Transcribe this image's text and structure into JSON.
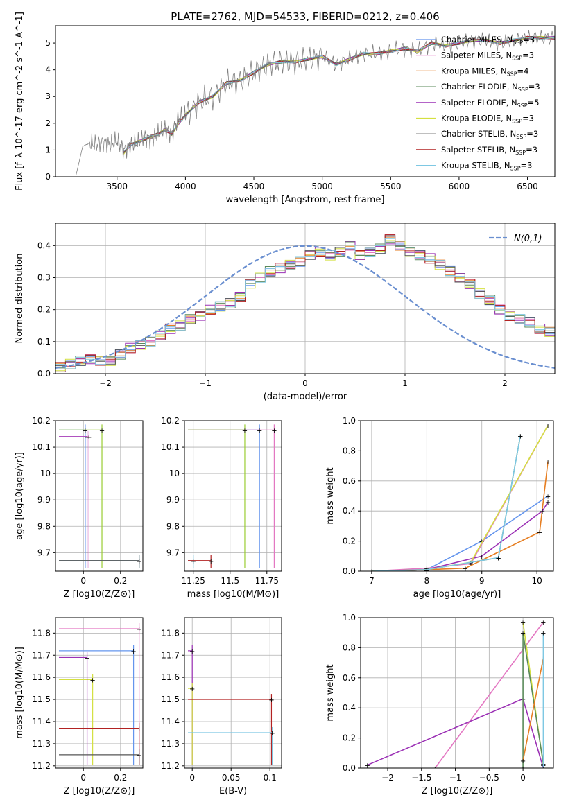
{
  "chart_data": [
    {
      "panel": "spectrum",
      "type": "line",
      "title": "PLATE=2762, MJD=54533, FIBERID=0212, z=0.406",
      "xlabel": "wavelength [Angstrom, rest frame]",
      "ylabel": "Flux [f_λ 10^-17 erg cm^-2 s^-1 A^-1]",
      "xlim": [
        3050,
        6700
      ],
      "ylim": [
        0,
        5.65
      ],
      "xticks": [
        3500,
        4000,
        4500,
        5000,
        5500,
        6000,
        6500
      ],
      "yticks": [
        0,
        1,
        2,
        3,
        4,
        5
      ],
      "legend_loc": "right",
      "data_x": [
        3200,
        3250,
        3300,
        3350,
        3400,
        3450,
        3500,
        3550,
        3600,
        3650,
        3700,
        3750,
        3800,
        3850,
        3900,
        3950,
        4000,
        4100,
        4200,
        4300,
        4400,
        4500,
        4600,
        4700,
        4800,
        4900,
        5000,
        5100,
        5200,
        5300,
        5400,
        5500,
        5600,
        5700,
        5800,
        5900,
        6000,
        6100,
        6200,
        6300,
        6400,
        6500,
        6600,
        6700
      ],
      "data_y": [
        0.05,
        1.15,
        1.25,
        1.2,
        1.3,
        1.2,
        1.35,
        1.0,
        1.2,
        1.25,
        1.5,
        1.4,
        1.6,
        1.8,
        1.6,
        2.2,
        2.3,
        2.8,
        3.0,
        3.5,
        3.6,
        3.9,
        4.2,
        4.3,
        4.3,
        4.4,
        4.5,
        4.2,
        4.4,
        4.6,
        4.6,
        4.7,
        4.8,
        4.7,
        5.0,
        4.9,
        5.0,
        5.1,
        5.1,
        5.0,
        5.1,
        5.2,
        5.2,
        5.2
      ],
      "model_x": [
        3550,
        3600,
        3650,
        3700,
        3750,
        3800,
        3850,
        3900,
        3950,
        4000,
        4100,
        4200,
        4300,
        4400,
        4500,
        4600,
        4700,
        4800,
        4900,
        5000,
        5100,
        5200,
        5300,
        5400,
        5500,
        5600,
        5700,
        5800,
        5900,
        6000,
        6100,
        6200,
        6300,
        6400,
        6500,
        6600,
        6700
      ],
      "model_y": [
        0.9,
        1.2,
        1.3,
        1.4,
        1.5,
        1.6,
        1.75,
        1.6,
        2.0,
        2.3,
        2.8,
        3.0,
        3.5,
        3.6,
        3.9,
        4.2,
        4.3,
        4.3,
        4.4,
        4.5,
        4.2,
        4.4,
        4.6,
        4.6,
        4.7,
        4.8,
        4.7,
        5.0,
        4.9,
        5.0,
        5.1,
        5.1,
        5.0,
        5.1,
        5.2,
        5.2,
        5.2
      ],
      "series": [
        {
          "name": "Chabrier MILES, N",
          "sub": "SSP",
          "suffix": "=3",
          "color": "#6495ed"
        },
        {
          "name": "Salpeter MILES, N",
          "sub": "SSP",
          "suffix": "=3",
          "color": "#e377c2"
        },
        {
          "name": "Kroupa MILES, N",
          "sub": "SSP",
          "suffix": "=4",
          "color": "#e67e22"
        },
        {
          "name": "Chabrier ELODIE, N",
          "sub": "SSP",
          "suffix": "=3",
          "color": "#5a8a5a"
        },
        {
          "name": "Salpeter ELODIE, N",
          "sub": "SSP",
          "suffix": "=5",
          "color": "#9b30b5"
        },
        {
          "name": "Kroupa ELODIE, N",
          "sub": "SSP",
          "suffix": "=3",
          "color": "#d4e040"
        },
        {
          "name": "Chabrier STELIB, N",
          "sub": "SSP",
          "suffix": "=3",
          "color": "#555555"
        },
        {
          "name": "Salpeter STELIB, N",
          "sub": "SSP",
          "suffix": "=3",
          "color": "#b22222"
        },
        {
          "name": "Kroupa STELIB, N",
          "sub": "SSP",
          "suffix": "=3",
          "color": "#7ec8e3"
        }
      ]
    },
    {
      "panel": "residuals",
      "type": "line",
      "xlabel": "(data-model)/error",
      "ylabel": "Normed distribution",
      "xlim": [
        -2.5,
        2.5
      ],
      "ylim": [
        0,
        0.47
      ],
      "xticks": [
        -2,
        -1,
        0,
        1,
        2
      ],
      "yticks": [
        0.0,
        0.1,
        0.2,
        0.3,
        0.4
      ],
      "legend": "N(0,1)",
      "bin_start": -2.5,
      "bin_width": 0.1,
      "hist": [
        0.02,
        0.03,
        0.04,
        0.045,
        0.04,
        0.04,
        0.06,
        0.08,
        0.09,
        0.1,
        0.12,
        0.14,
        0.15,
        0.17,
        0.18,
        0.2,
        0.21,
        0.22,
        0.24,
        0.28,
        0.3,
        0.32,
        0.33,
        0.34,
        0.35,
        0.37,
        0.38,
        0.37,
        0.38,
        0.4,
        0.37,
        0.38,
        0.39,
        0.42,
        0.4,
        0.38,
        0.37,
        0.36,
        0.34,
        0.32,
        0.3,
        0.28,
        0.25,
        0.23,
        0.2,
        0.18,
        0.17,
        0.16,
        0.14,
        0.13,
        0.12,
        0.1,
        0.09,
        0.09,
        0.08,
        0.07,
        0.06,
        0.05,
        0.04,
        0.04,
        0.03,
        0.03,
        0.02,
        0.02,
        0.02,
        0.02,
        0.02,
        0.02,
        0.02,
        0.02
      ]
    },
    {
      "panel": "age_vs_Z",
      "type": "scatter",
      "xlabel": "Z [log10(Z/Z⊙)]",
      "ylabel": "age  [log10(age/yr)]",
      "xlim": [
        -0.15,
        0.32
      ],
      "ylim": [
        9.63,
        10.2
      ],
      "xticks": [
        0.0,
        0.2
      ],
      "yticks": [
        9.7,
        9.8,
        9.9,
        10.0,
        10.1,
        10.2
      ],
      "points": [
        {
          "x": 0.01,
          "y": 10.165,
          "color": "#6495ed"
        },
        {
          "x": 0.03,
          "y": 10.14,
          "color": "#e377c2"
        },
        {
          "x": 0.1,
          "y": 10.165,
          "color": "#9acd32"
        },
        {
          "x": 0.02,
          "y": 10.14,
          "color": "#9b30b5"
        },
        {
          "x": 0.3,
          "y": 9.67,
          "color": "#7ec8e3"
        },
        {
          "x": 0.3,
          "y": 9.67,
          "color": "#555555"
        }
      ]
    },
    {
      "panel": "age_vs_mass",
      "type": "scatter",
      "xlabel": "mass [log10(M/M⊙)]",
      "ylabel": "",
      "xlim": [
        11.19,
        11.85
      ],
      "ylim": [
        9.63,
        10.2
      ],
      "xticks": [
        11.25,
        11.5,
        11.75
      ],
      "yticks": [
        9.7,
        9.8,
        9.9,
        10.0,
        10.1,
        10.2
      ],
      "points": [
        {
          "x": 11.7,
          "y": 10.165,
          "color": "#6495ed"
        },
        {
          "x": 11.8,
          "y": 10.165,
          "color": "#e377c2"
        },
        {
          "x": 11.6,
          "y": 10.165,
          "color": "#9acd32"
        },
        {
          "x": 11.25,
          "y": 9.67,
          "color": "#7ec8e3"
        },
        {
          "x": 11.37,
          "y": 9.67,
          "color": "#b22222"
        }
      ]
    },
    {
      "panel": "massweight_vs_age",
      "type": "line",
      "xlabel": "age  [log10(age/yr)]",
      "ylabel": "mass weight",
      "xlim": [
        6.8,
        10.3
      ],
      "ylim": [
        0,
        1.0
      ],
      "xticks": [
        7,
        8,
        9,
        10
      ],
      "yticks": [
        0.0,
        0.2,
        0.4,
        0.6,
        0.8,
        1.0
      ],
      "series": [
        {
          "color": "#6495ed",
          "x": [
            7.0,
            8.0,
            9.0,
            10.2
          ],
          "y": [
            0.0,
            0.01,
            0.2,
            0.5
          ]
        },
        {
          "color": "#e377c2",
          "x": [
            7.0,
            8.0,
            8.8,
            10.2
          ],
          "y": [
            0.0,
            0.02,
            0.05,
            0.97
          ]
        },
        {
          "color": "#e67e22",
          "x": [
            7.0,
            8.0,
            8.7,
            10.05,
            10.2
          ],
          "y": [
            0.0,
            0.01,
            0.02,
            0.26,
            0.73
          ]
        },
        {
          "color": "#5a8a5a",
          "x": [
            7.0,
            8.0,
            9.3,
            9.7
          ],
          "y": [
            0.0,
            0.01,
            0.09,
            0.9
          ]
        },
        {
          "color": "#9b30b5",
          "x": [
            7.0,
            8.0,
            9.0,
            10.1,
            10.2
          ],
          "y": [
            0.0,
            0.01,
            0.1,
            0.4,
            0.46
          ]
        },
        {
          "color": "#d4e040",
          "x": [
            7.0,
            8.0,
            8.8,
            10.2
          ],
          "y": [
            0.0,
            0.01,
            0.06,
            0.97
          ]
        },
        {
          "color": "#7ec8e3",
          "x": [
            7.0,
            8.0,
            9.3,
            9.7
          ],
          "y": [
            0.0,
            0.01,
            0.09,
            0.9
          ]
        }
      ]
    },
    {
      "panel": "mass_vs_Z",
      "type": "scatter",
      "xlabel": "Z [log10(Z/Z⊙)]",
      "ylabel": "mass [log10(M/M⊙)]",
      "xlim": [
        -0.15,
        0.32
      ],
      "ylim": [
        11.19,
        11.87
      ],
      "xticks": [
        0.0,
        0.2
      ],
      "yticks": [
        11.2,
        11.3,
        11.4,
        11.5,
        11.6,
        11.7,
        11.8
      ],
      "points": [
        {
          "x": 0.27,
          "y": 11.72,
          "color": "#6495ed"
        },
        {
          "x": 0.3,
          "y": 11.82,
          "color": "#e377c2"
        },
        {
          "x": 0.05,
          "y": 11.59,
          "color": "#d4e040"
        },
        {
          "x": 0.02,
          "y": 11.69,
          "color": "#9b30b5"
        },
        {
          "x": 0.3,
          "y": 11.37,
          "color": "#b22222"
        },
        {
          "x": 0.3,
          "y": 11.25,
          "color": "#555555"
        }
      ]
    },
    {
      "panel": "mass_vs_EBV",
      "type": "scatter",
      "xlabel": "E(B-V)",
      "ylabel": "",
      "xlim": [
        -0.01,
        0.115
      ],
      "ylim": [
        11.19,
        11.87
      ],
      "xticks": [
        0.0,
        0.05,
        0.1
      ],
      "yticks": [
        11.2,
        11.3,
        11.4,
        11.5,
        11.6,
        11.7,
        11.8
      ],
      "points": [
        {
          "x": 0.0,
          "y": 11.72,
          "color": "#9b30b5"
        },
        {
          "x": 0.0,
          "y": 11.55,
          "color": "#d4e040"
        },
        {
          "x": 0.102,
          "y": 11.5,
          "color": "#b22222"
        },
        {
          "x": 0.103,
          "y": 11.35,
          "color": "#7ec8e3"
        }
      ]
    },
    {
      "panel": "massweight_vs_Z",
      "type": "line",
      "xlabel": "Z [log10(Z/Z⊙)]",
      "ylabel": "mass weight",
      "xlim": [
        -2.4,
        0.45
      ],
      "ylim": [
        0,
        1.0
      ],
      "xticks": [
        -2.0,
        -1.5,
        -1.0,
        -0.5,
        0.0
      ],
      "yticks": [
        0.0,
        0.2,
        0.4,
        0.6,
        0.8,
        1.0
      ],
      "series": [
        {
          "color": "#e377c2",
          "x": [
            -1.3,
            0.3
          ],
          "y": [
            0.0,
            0.97
          ]
        },
        {
          "color": "#9b30b5",
          "x": [
            -2.3,
            0.0,
            0.3
          ],
          "y": [
            0.02,
            0.46,
            0.0
          ]
        },
        {
          "color": "#d4e040",
          "x": [
            0.0,
            0.3
          ],
          "y": [
            0.97,
            0.02
          ]
        },
        {
          "color": "#5a8a5a",
          "x": [
            0.0,
            0.0,
            0.3
          ],
          "y": [
            0.0,
            0.9,
            0.03
          ]
        },
        {
          "color": "#e67e22",
          "x": [
            0.0,
            0.3
          ],
          "y": [
            0.05,
            0.73
          ]
        },
        {
          "color": "#7ec8e3",
          "x": [
            0.3,
            0.3
          ],
          "y": [
            0.0,
            0.9
          ]
        }
      ]
    }
  ]
}
